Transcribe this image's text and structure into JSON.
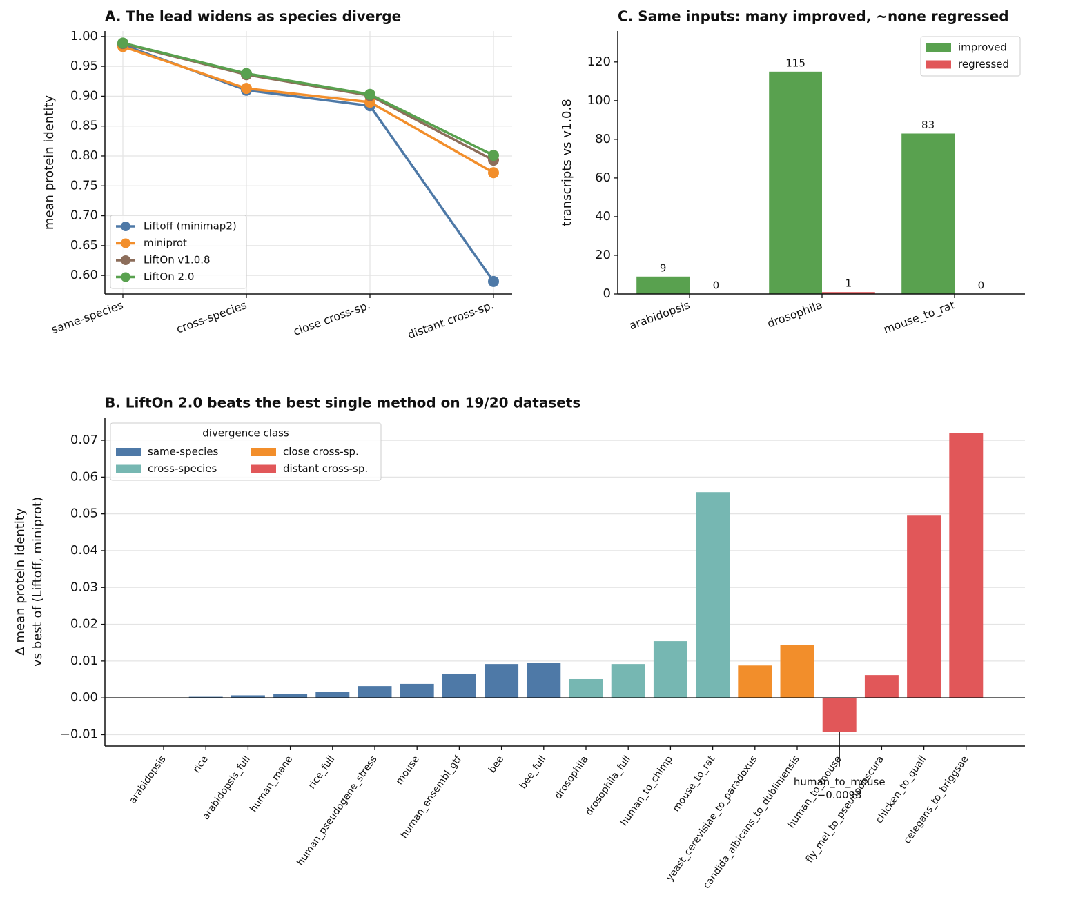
{
  "chart_data": [
    {
      "type": "line",
      "title": "A.  The lead widens as species diverge",
      "ylabel": "mean protein identity",
      "categories": [
        "same-species",
        "cross-species",
        "close cross-sp.",
        "distant cross-sp."
      ],
      "series": [
        {
          "name": "Liftoff (minimap2)",
          "color": "#4e79a7",
          "values": [
            0.986,
            0.91,
            0.884,
            0.59
          ]
        },
        {
          "name": "miniprot",
          "color": "#f28e2b",
          "values": [
            0.983,
            0.913,
            0.89,
            0.772
          ]
        },
        {
          "name": "LiftOn v1.0.8",
          "color": "#8c6d5a",
          "values": [
            0.988,
            0.936,
            0.901,
            0.793
          ]
        },
        {
          "name": "LiftOn 2.0",
          "color": "#59a14f",
          "values": [
            0.989,
            0.938,
            0.903,
            0.801
          ]
        }
      ],
      "ylim": [
        0.569,
        1.009
      ],
      "yticks": [
        {
          "value": 0.6,
          "label": "0.60"
        },
        0.65,
        {
          "value": 0.7,
          "label": "0.70"
        },
        0.75,
        {
          "value": 0.8,
          "label": "0.80"
        },
        0.85,
        {
          "value": 0.9,
          "label": "0.90"
        },
        0.95,
        {
          "value": 1,
          "label": "1.00"
        }
      ],
      "grid": "both",
      "legend": "lower left"
    },
    {
      "type": "bar",
      "title": "C.  Same inputs: many improved, ~none regressed",
      "ylabel": "transcripts vs v1.0.8",
      "categories": [
        "arabidopsis",
        "drosophila",
        "mouse_to_rat"
      ],
      "series": [
        {
          "name": "improved",
          "color": "#59a14f",
          "values": [
            9,
            115,
            83
          ]
        },
        {
          "name": "regressed",
          "color": "#e15759",
          "values": [
            0,
            1,
            0
          ]
        }
      ],
      "ylim": [
        0,
        136
      ],
      "yticks": [
        0,
        20,
        40,
        60,
        80,
        100,
        120
      ],
      "bar_labels": true,
      "legend": "upper right"
    },
    {
      "type": "bar",
      "title": "B.  LiftOn 2.0 beats the best single method on 19/20 datasets",
      "ylabel": [
        "Δ mean protein identity",
        "vs best of (Liftoff, miniprot)"
      ],
      "categories": [
        "arabidopsis",
        "rice",
        "arabidopsis_full",
        "human_mane",
        "rice_full",
        "human_pseudogene_stress",
        "mouse",
        "human_ensembl_gtf",
        "bee",
        "bee_full",
        "drosophila",
        "drosophila_full",
        "human_to_chimp",
        "mouse_to_rat",
        "yeast_cerevisiae_to_paradoxus",
        "candida_albicans_to_dubliniensis",
        "human_to_mouse",
        "fly_mel_to_pseudoobscura",
        "chicken_to_quail",
        "celegans_to_briggsae"
      ],
      "legend_title": "divergence class",
      "series": [
        {
          "name": "same-species",
          "color": "#4e79a7",
          "values": [
            0,
            0.0003,
            0.0007,
            0.0011,
            0.0017,
            0.0032,
            0.0038,
            0.0066,
            0.0092,
            0.0096,
            null,
            null,
            null,
            null,
            null,
            null,
            null,
            null,
            null,
            null
          ]
        },
        {
          "name": "cross-species",
          "color": "#76b7b2",
          "values": [
            null,
            null,
            null,
            null,
            null,
            null,
            null,
            null,
            null,
            null,
            0.0051,
            0.0092,
            0.0154,
            0.0559,
            null,
            null,
            null,
            null,
            null,
            null
          ]
        },
        {
          "name": "close cross-sp.",
          "color": "#f28e2b",
          "values": [
            null,
            null,
            null,
            null,
            null,
            null,
            null,
            null,
            null,
            null,
            null,
            null,
            null,
            null,
            0.0088,
            0.0143,
            null,
            null,
            null,
            null
          ]
        },
        {
          "name": "distant cross-sp.",
          "color": "#e15759",
          "values": [
            null,
            null,
            null,
            null,
            null,
            null,
            null,
            null,
            null,
            null,
            null,
            null,
            null,
            null,
            null,
            null,
            -0.0093,
            0.0062,
            0.0497,
            0.0719
          ]
        }
      ],
      "annotation": {
        "lines": [
          "human_to_mouse",
          "−0.0093"
        ]
      },
      "ylim": [
        -0.0131,
        0.0762
      ],
      "yticks": [
        {
          "value": -0.01,
          "label": "−0.01"
        },
        {
          "value": 0,
          "label": "0.00"
        },
        0.01,
        0.02,
        0.03,
        0.04,
        0.05,
        0.06,
        0.07
      ],
      "grid": "y",
      "legend": "upper left",
      "legend_columns": 2
    }
  ]
}
